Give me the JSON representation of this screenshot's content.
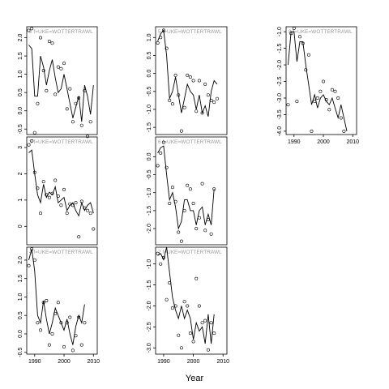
{
  "chart_data": {
    "type": "scatter",
    "xlabel": "Year",
    "x": [
      1988,
      1989,
      1990,
      1991,
      1992,
      1993,
      1994,
      1995,
      1996,
      1997,
      1998,
      1999,
      2000,
      2001,
      2002,
      2003,
      2004,
      2005,
      2006,
      2007,
      2008,
      2009,
      2010
    ],
    "panels": [
      {
        "strip": "2  f=UKE=WOTTERTRAWL",
        "ylim": [
          -0.65,
          2.3
        ],
        "yticks": [
          "-0.5",
          "0.0",
          "0.5",
          "1.0",
          "1.5",
          "2.0"
        ],
        "ytick_values": [
          -0.5,
          0.0,
          0.5,
          1.0,
          1.5,
          2.0
        ],
        "xticks": [
          "1990",
          "2000",
          "2010"
        ],
        "xtick_values": [
          1990,
          2000,
          2010
        ],
        "show_xaxis": false,
        "points": [
          2.2,
          2.25,
          -0.6,
          0.2,
          2.0,
          1.1,
          0.55,
          1.9,
          1.85,
          0.45,
          1.2,
          1.15,
          1.3,
          0.05,
          0.6,
          -0.3,
          0.2,
          0.35,
          -0.4,
          0.55,
          -0.7,
          -0.3,
          null
        ],
        "line": [
          1.8,
          1.7,
          0.4,
          0.4,
          1.5,
          1.2,
          0.7,
          1.1,
          1.4,
          0.9,
          0.5,
          0.6,
          1.0,
          0.6,
          0.2,
          -0.2,
          0.1,
          0.4,
          -0.3,
          0.7,
          0.4,
          -0.1,
          0.7
        ]
      },
      {
        "strip": "3  f=UKE=WOTTERTRAWL",
        "ylim": [
          -0.7,
          3.4
        ],
        "yticks": [
          "0",
          "1",
          "2",
          "3"
        ],
        "ytick_values": [
          0,
          1,
          2,
          3
        ],
        "xticks": [
          "1990",
          "2000",
          "2010"
        ],
        "xtick_values": [
          1990,
          2000,
          2010
        ],
        "show_xaxis": false,
        "points": [
          3.1,
          3.25,
          2.05,
          1.45,
          0.5,
          1.7,
          1.2,
          1.1,
          1.25,
          1.75,
          1.15,
          0.8,
          1.4,
          0.5,
          0.85,
          0.8,
          0.9,
          -0.4,
          0.95,
          0.7,
          0.6,
          0.5,
          -0.1
        ],
        "line": [
          2.8,
          2.9,
          2.0,
          1.2,
          0.9,
          1.6,
          1.1,
          1.3,
          1.2,
          1.5,
          0.9,
          1.0,
          1.1,
          0.6,
          0.8,
          0.9,
          0.6,
          0.4,
          0.9,
          0.6,
          0.8,
          0.9,
          0.5
        ]
      },
      {
        "strip": "4  f=UKE=WOTTERTRAWL",
        "ylim": [
          -0.55,
          2.35
        ],
        "yticks": [
          "-0.5",
          "0.0",
          "0.5",
          "1.0",
          "1.5",
          "2.0"
        ],
        "ytick_values": [
          -0.5,
          0.0,
          0.5,
          1.0,
          1.5,
          2.0
        ],
        "xticks": [
          "1990",
          "2000",
          "2010"
        ],
        "xtick_values": [
          1990,
          2000,
          2010
        ],
        "show_xaxis": true,
        "points": [
          1.85,
          2.3,
          2.0,
          0.3,
          0.1,
          0.85,
          0.9,
          -0.3,
          0.0,
          0.55,
          0.85,
          0.3,
          -0.35,
          0.3,
          0.45,
          -0.45,
          -0.05,
          0.45,
          -0.3,
          0.3,
          null,
          null,
          null
        ],
        "line": [
          2.0,
          2.3,
          1.7,
          0.5,
          0.3,
          0.9,
          0.4,
          0.0,
          0.3,
          0.7,
          0.5,
          0.3,
          0.1,
          0.4,
          0.0,
          -0.3,
          0.2,
          0.5,
          0.3,
          0.8,
          null,
          null,
          null
        ]
      },
      {
        "strip": "5  f=UKE=WOTTERTRAWL",
        "ylim": [
          -1.7,
          1.3
        ],
        "yticks": [
          "-1.5",
          "-1.0",
          "-0.5",
          "0.0",
          "0.5",
          "1.0"
        ],
        "ytick_values": [
          -1.5,
          -1.0,
          -0.5,
          0.0,
          0.5,
          1.0
        ],
        "xticks": [
          "1990",
          "2000",
          "2010"
        ],
        "xtick_values": [
          1990,
          2000,
          2010
        ],
        "show_xaxis": false,
        "points": [
          0.85,
          1.0,
          1.2,
          0.7,
          -0.75,
          -0.85,
          -0.05,
          -0.6,
          -1.6,
          -0.95,
          -0.05,
          -0.1,
          -0.2,
          -1.05,
          -0.2,
          -1.1,
          -0.3,
          -0.6,
          -0.75,
          -0.8,
          -0.7,
          null,
          null
        ],
        "line": [
          0.9,
          1.1,
          1.2,
          0.5,
          -0.7,
          -0.5,
          -0.1,
          -0.6,
          -1.1,
          -0.7,
          -0.3,
          -0.5,
          -0.6,
          -1.0,
          -0.6,
          -1.1,
          -0.9,
          -1.2,
          -0.5,
          -0.2,
          -0.3,
          null,
          null
        ]
      },
      {
        "strip": "6  f=UKE=WOTTERTRAWL",
        "ylim": [
          -2.45,
          0.55
        ],
        "yticks": [
          "-2.0",
          "-1.5",
          "-1.0",
          "-0.5",
          "0.0"
        ],
        "ytick_values": [
          -2.0,
          -1.5,
          -1.0,
          -0.5,
          0.0
        ],
        "xticks": [
          "1990",
          "2000",
          "2010"
        ],
        "xtick_values": [
          1990,
          2000,
          2010
        ],
        "show_xaxis": false,
        "points": [
          -0.25,
          0.1,
          0.4,
          -0.3,
          -1.3,
          -0.85,
          -1.25,
          -2.1,
          -2.35,
          -1.5,
          -0.8,
          -0.9,
          -1.3,
          -2.0,
          -1.7,
          -0.75,
          -2.05,
          -1.75,
          -2.15,
          -0.9,
          null,
          null,
          null
        ],
        "line": [
          0.1,
          0.25,
          0.3,
          -0.5,
          -1.2,
          -1.0,
          -1.4,
          -2.0,
          -1.8,
          -1.2,
          -1.2,
          -1.5,
          -1.5,
          -1.9,
          -1.5,
          -1.4,
          -1.9,
          -1.6,
          -1.9,
          -0.9,
          null,
          null,
          null
        ]
      },
      {
        "strip": "7  f=UKE=WOTTERTRAWL",
        "ylim": [
          -3.15,
          -0.6
        ],
        "yticks": [
          "-3.0",
          "-2.5",
          "-2.0",
          "-1.5",
          "-1.0"
        ],
        "ytick_values": [
          -3.0,
          -2.5,
          -2.0,
          -1.5,
          -1.0
        ],
        "xticks": [
          "1990",
          "2000",
          "2010"
        ],
        "xtick_values": [
          1990,
          2000,
          2010
        ],
        "show_xaxis": true,
        "points": [
          -0.75,
          -1.0,
          -0.85,
          -1.85,
          -1.45,
          -2.05,
          -2.0,
          -2.7,
          -3.0,
          -1.9,
          -2.0,
          -2.65,
          -2.85,
          -1.35,
          -2.0,
          -2.4,
          -2.35,
          -3.05,
          -2.4,
          -2.65,
          null,
          null,
          null
        ],
        "line": [
          -0.8,
          -0.75,
          -0.9,
          -0.6,
          -1.2,
          -1.8,
          -2.1,
          -2.3,
          -2.0,
          -2.3,
          -2.1,
          -2.3,
          -2.8,
          -2.4,
          -2.6,
          -2.5,
          -2.9,
          -2.2,
          -2.9,
          -2.2,
          null,
          null,
          null
        ]
      },
      {
        "strip": "8  f=UKE=WOTTERTRAWL",
        "ylim": [
          -4.1,
          -0.85
        ],
        "yticks": [
          "-4.0",
          "-3.5",
          "-3.0",
          "-2.5",
          "-2.0",
          "-1.5",
          "-1.0"
        ],
        "ytick_values": [
          -4.0,
          -3.5,
          -3.0,
          -2.5,
          -2.0,
          -1.5,
          -1.0
        ],
        "xticks": [
          "1990",
          "2000",
          "2010"
        ],
        "xtick_values": [
          1990,
          2000,
          2010
        ],
        "show_xaxis": true,
        "points": [
          -3.2,
          -1.05,
          -0.9,
          -3.1,
          -1.15,
          -1.35,
          -2.15,
          -1.7,
          -4.0,
          -3.1,
          -3.0,
          -2.8,
          -2.5,
          -3.05,
          -3.35,
          -2.75,
          -2.8,
          -3.0,
          -3.6,
          -4.0,
          null,
          null,
          null
        ],
        "line": [
          -2.0,
          -1.0,
          -1.0,
          -1.9,
          -1.3,
          -1.3,
          -2.0,
          -2.6,
          -3.2,
          -2.9,
          -3.3,
          -3.0,
          -2.9,
          -3.1,
          -3.2,
          -3.0,
          -3.3,
          -3.6,
          -3.2,
          -3.6,
          -4.0,
          null,
          null
        ]
      }
    ]
  }
}
